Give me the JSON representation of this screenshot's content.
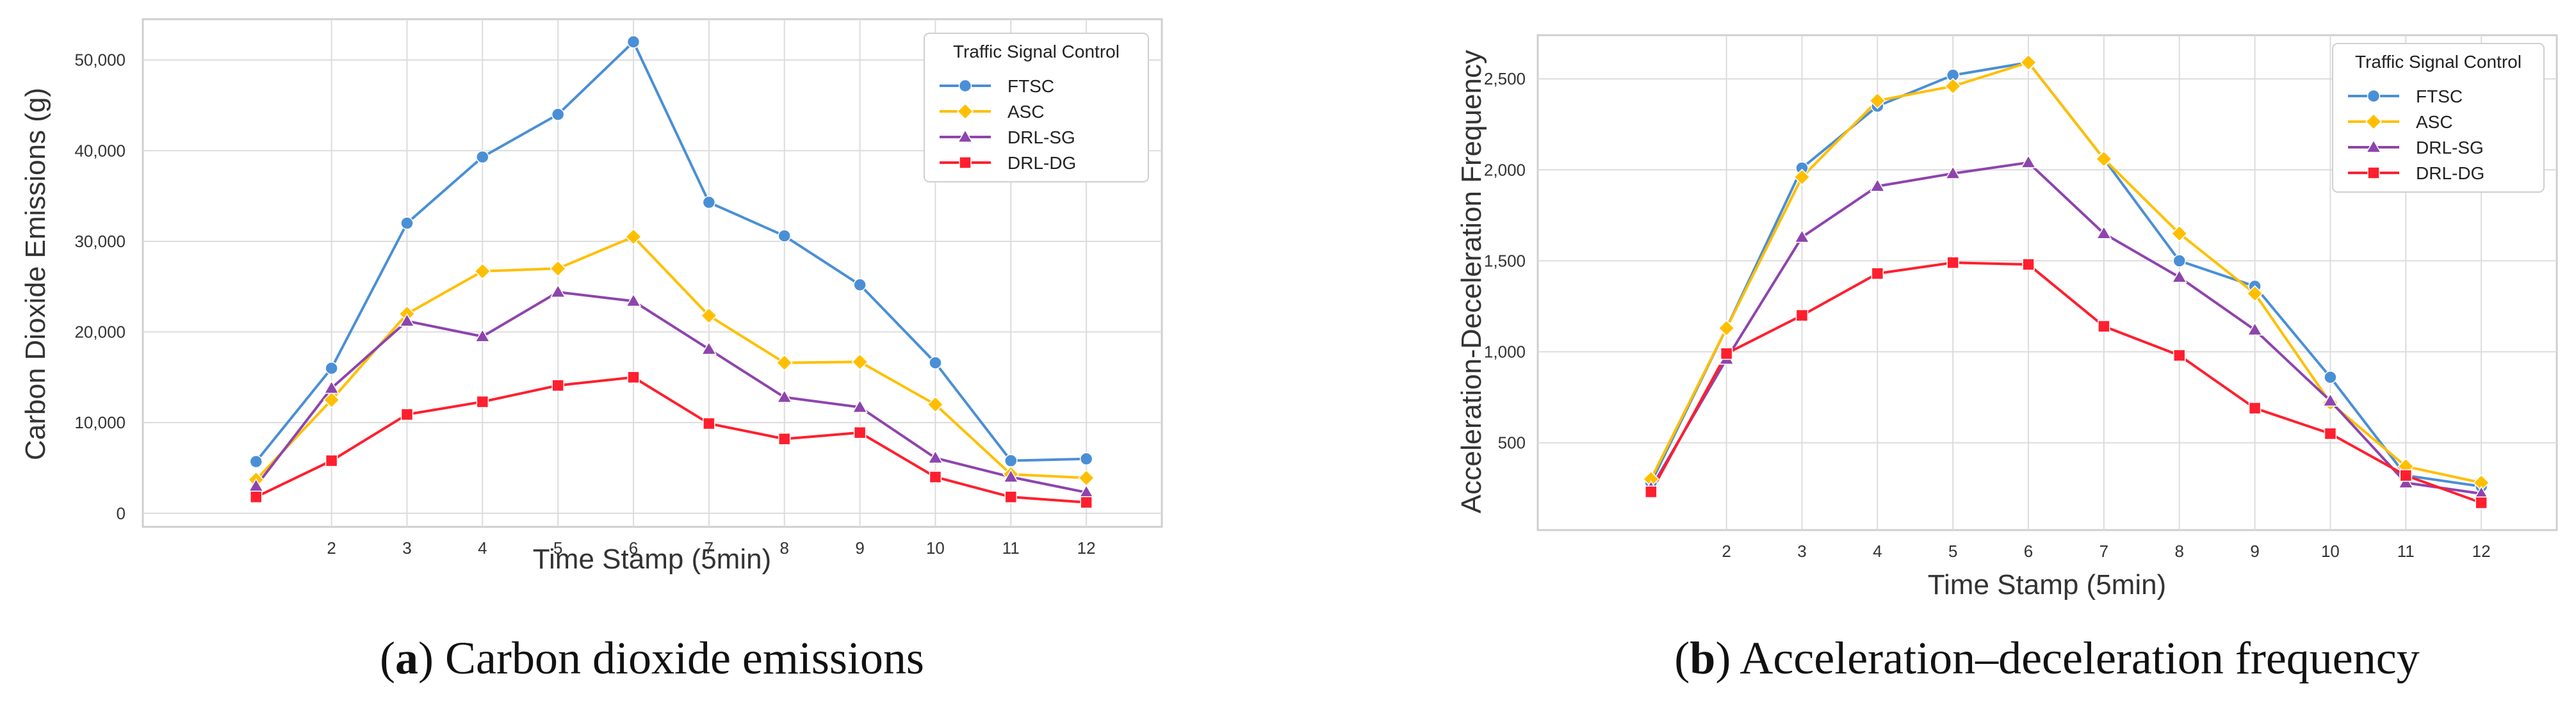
{
  "chart_data": [
    {
      "type": "line",
      "id": "co2",
      "caption_letter": "a",
      "caption_text": "Carbon dioxide emissions",
      "xlabel": "Time Stamp (5min)",
      "ylabel": "Carbon Dioxide Emissions (g)",
      "x": [
        1,
        2,
        3,
        4,
        5,
        6,
        7,
        8,
        9,
        10,
        11,
        12
      ],
      "xticks": [
        2,
        3,
        4,
        5,
        6,
        7,
        8,
        9,
        10,
        11,
        12
      ],
      "xlim": [
        -0.5,
        13.0
      ],
      "ylim": [
        -1500,
        54500
      ],
      "yticks": [
        0,
        10000,
        20000,
        30000,
        40000,
        50000
      ],
      "ytick_labels": [
        "0",
        "10,000",
        "20,000",
        "30,000",
        "40,000",
        "50,000"
      ],
      "grid": true,
      "legend_title": "Traffic Signal Control",
      "legend_position": "top-right",
      "series": [
        {
          "name": "FTSC",
          "color": "#4a8fd6",
          "marker": "circle",
          "values": [
            5700,
            16000,
            32000,
            39300,
            44000,
            52000,
            34300,
            30600,
            25200,
            16600,
            5800,
            6000
          ]
        },
        {
          "name": "ASC",
          "color": "#ffbf00",
          "marker": "diamond",
          "values": [
            3700,
            12500,
            22000,
            26700,
            27000,
            30500,
            21800,
            16600,
            16700,
            12000,
            4300,
            3900
          ]
        },
        {
          "name": "DRL-SG",
          "color": "#8e44ad",
          "marker": "triangle",
          "values": [
            3000,
            13800,
            21200,
            19500,
            24400,
            23400,
            18100,
            12800,
            11700,
            6100,
            4000,
            2300
          ]
        },
        {
          "name": "DRL-DG",
          "color": "#ff1f2e",
          "marker": "square",
          "values": [
            1800,
            5800,
            10900,
            12300,
            14100,
            15000,
            9900,
            8200,
            8900,
            4000,
            1800,
            1200
          ]
        }
      ]
    },
    {
      "type": "line",
      "id": "accel",
      "caption_letter": "b",
      "caption_text": "Acceleration–deceleration frequency",
      "xlabel": "Time Stamp (5min)",
      "ylabel": "Acceleration-Deceleration Frequency",
      "x": [
        1,
        2,
        3,
        4,
        5,
        6,
        7,
        8,
        9,
        10,
        11,
        12
      ],
      "xticks": [
        2,
        3,
        4,
        5,
        6,
        7,
        8,
        9,
        10,
        11,
        12
      ],
      "xlim": [
        -0.5,
        13.0
      ],
      "ylim": [
        20,
        2740
      ],
      "yticks": [
        500,
        1000,
        1500,
        2000,
        2500
      ],
      "ytick_labels": [
        "500",
        "1,000",
        "1,500",
        "2,000",
        "2,500"
      ],
      "grid": true,
      "legend_title": "Traffic Signal Control",
      "legend_position": "top-right",
      "series": [
        {
          "name": "FTSC",
          "color": "#4a8fd6",
          "marker": "circle",
          "values": [
            280,
            1130,
            2010,
            2350,
            2520,
            2590,
            2060,
            1500,
            1360,
            860,
            320,
            260
          ]
        },
        {
          "name": "ASC",
          "color": "#ffbf00",
          "marker": "diamond",
          "values": [
            300,
            1130,
            1960,
            2380,
            2460,
            2590,
            2060,
            1650,
            1320,
            720,
            370,
            280
          ]
        },
        {
          "name": "DRL-SG",
          "color": "#8e44ad",
          "marker": "triangle",
          "values": [
            250,
            960,
            1630,
            1910,
            1980,
            2040,
            1650,
            1410,
            1120,
            730,
            280,
            220
          ]
        },
        {
          "name": "DRL-DG",
          "color": "#ff1f2e",
          "marker": "square",
          "values": [
            230,
            990,
            1200,
            1430,
            1490,
            1480,
            1140,
            980,
            690,
            550,
            320,
            170
          ]
        }
      ]
    }
  ]
}
